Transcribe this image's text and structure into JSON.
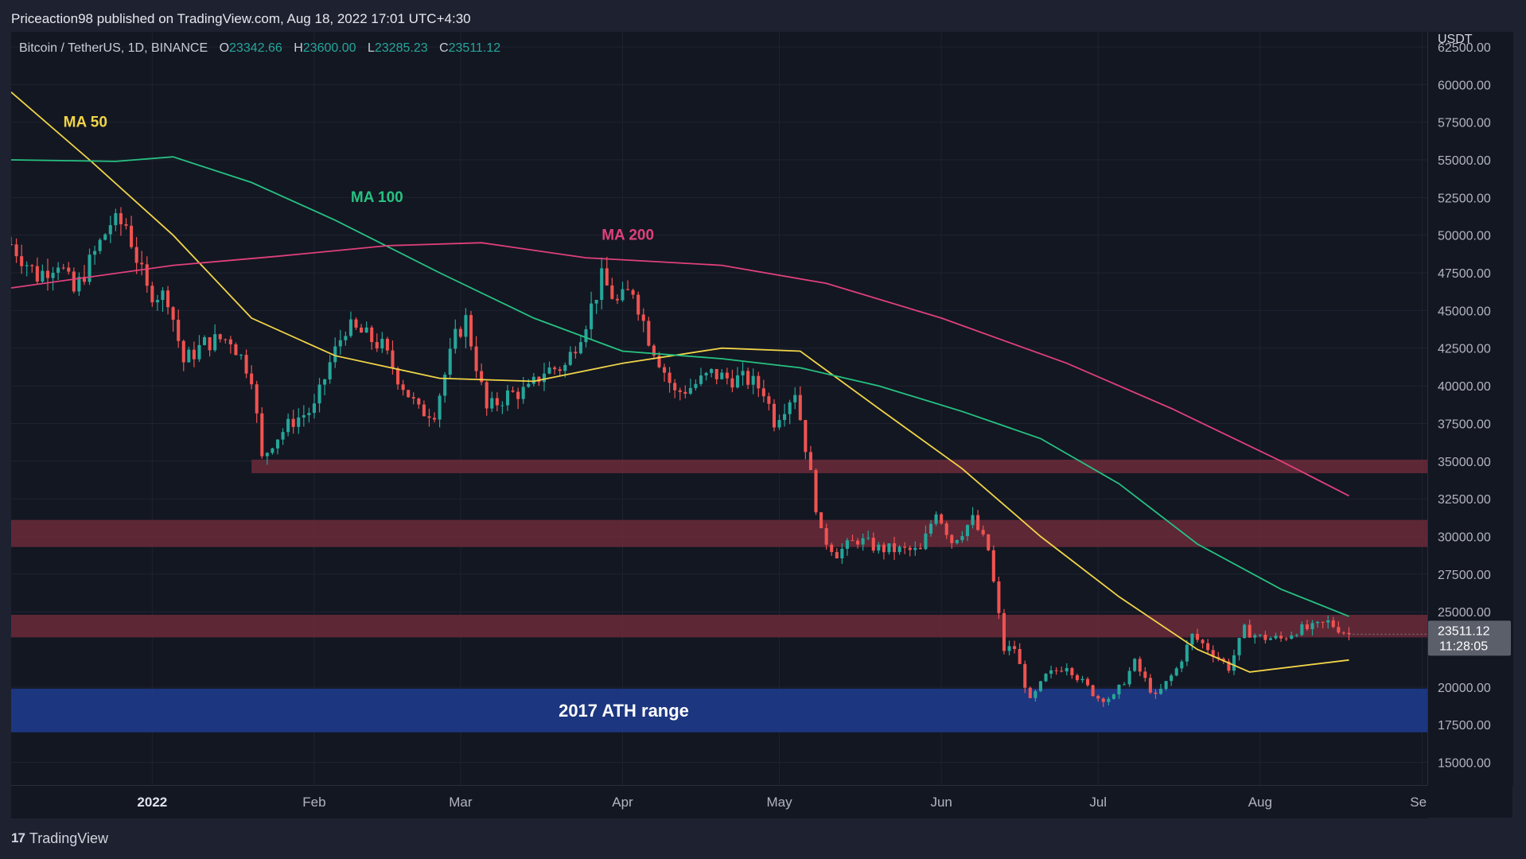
{
  "header": {
    "published_line": "Priceaction98 published on TradingView.com, Aug 18, 2022 17:01 UTC+4:30"
  },
  "symbol": {
    "name": "Bitcoin / TetherUS, 1D, BINANCE",
    "open_label": "O",
    "open": "23342.66",
    "high_label": "H",
    "high": "23600.00",
    "low_label": "L",
    "low": "23285.23",
    "close_label": "C",
    "close": "23511.12"
  },
  "footer": {
    "brand": "TradingView",
    "logo_text": "17"
  },
  "colors": {
    "up": "#26a69a",
    "down": "#ef5350",
    "ma50": "#f0d448",
    "ma100": "#26c281",
    "ma200": "#e0407a",
    "resistance_zone": "#6b2a3a",
    "ath_zone": "#1e3a8a",
    "background": "#131722"
  },
  "chart_data": {
    "type": "candlestick",
    "title": "",
    "currency_label": "USDT",
    "y_ticks": [
      "62500.00",
      "60000.00",
      "57500.00",
      "55000.00",
      "52500.00",
      "50000.00",
      "47500.00",
      "45000.00",
      "42500.00",
      "40000.00",
      "37500.00",
      "35000.00",
      "32500.00",
      "30000.00",
      "27500.00",
      "25000.00",
      "20000.00",
      "17500.00",
      "15000.00"
    ],
    "x_ticks": [
      {
        "label": "2022",
        "date": "2022-01-01"
      },
      {
        "label": "Feb",
        "date": "2022-02-01"
      },
      {
        "label": "Mar",
        "date": "2022-03-01"
      },
      {
        "label": "Apr",
        "date": "2022-04-01"
      },
      {
        "label": "May",
        "date": "2022-05-01"
      },
      {
        "label": "Jun",
        "date": "2022-06-01"
      },
      {
        "label": "Jul",
        "date": "2022-07-01"
      },
      {
        "label": "Aug",
        "date": "2022-08-01"
      },
      {
        "label": "Sep",
        "date": "2022-09-01"
      }
    ],
    "x_range": [
      "2021-12-05",
      "2022-09-02"
    ],
    "y_range": [
      13500,
      63500
    ],
    "last_price": "23511.12",
    "countdown": "11:28:05",
    "price_path": [
      [
        "2021-12-05",
        49400
      ],
      [
        "2021-12-10",
        47300
      ],
      [
        "2021-12-14",
        48300
      ],
      [
        "2021-12-17",
        46200
      ],
      [
        "2021-12-21",
        48800
      ],
      [
        "2021-12-24",
        50800
      ],
      [
        "2021-12-27",
        50700
      ],
      [
        "2021-12-31",
        46300
      ],
      [
        "2022-01-04",
        45900
      ],
      [
        "2022-01-07",
        41600
      ],
      [
        "2022-01-11",
        42800
      ],
      [
        "2022-01-14",
        43100
      ],
      [
        "2022-01-16",
        43100
      ],
      [
        "2022-01-20",
        40700
      ],
      [
        "2022-01-22",
        35100
      ],
      [
        "2022-01-24",
        36300
      ],
      [
        "2022-01-28",
        37700
      ],
      [
        "2022-02-01",
        38500
      ],
      [
        "2022-02-04",
        41500
      ],
      [
        "2022-02-07",
        43900
      ],
      [
        "2022-02-10",
        43500
      ],
      [
        "2022-02-14",
        42600
      ],
      [
        "2022-02-17",
        40600
      ],
      [
        "2022-02-21",
        38300
      ],
      [
        "2022-02-24",
        38300
      ],
      [
        "2022-02-28",
        43200
      ],
      [
        "2022-03-02",
        44400
      ],
      [
        "2022-03-06",
        38400
      ],
      [
        "2022-03-10",
        39400
      ],
      [
        "2022-03-14",
        39700
      ],
      [
        "2022-03-17",
        41000
      ],
      [
        "2022-03-21",
        41300
      ],
      [
        "2022-03-25",
        44300
      ],
      [
        "2022-03-28",
        47100
      ],
      [
        "2022-03-31",
        45500
      ],
      [
        "2022-04-03",
        46400
      ],
      [
        "2022-04-06",
        43200
      ],
      [
        "2022-04-11",
        39500
      ],
      [
        "2022-04-14",
        39900
      ],
      [
        "2022-04-18",
        40800
      ],
      [
        "2022-04-21",
        40500
      ],
      [
        "2022-04-25",
        40400
      ],
      [
        "2022-04-28",
        39700
      ],
      [
        "2022-04-30",
        37700
      ],
      [
        "2022-05-04",
        39700
      ],
      [
        "2022-05-06",
        36000
      ],
      [
        "2022-05-09",
        30100
      ],
      [
        "2022-05-12",
        28900
      ],
      [
        "2022-05-16",
        29800
      ],
      [
        "2022-05-20",
        29200
      ],
      [
        "2022-05-24",
        29100
      ],
      [
        "2022-05-28",
        29000
      ],
      [
        "2022-05-31",
        31800
      ],
      [
        "2022-06-03",
        29700
      ],
      [
        "2022-06-07",
        31100
      ],
      [
        "2022-06-10",
        29100
      ],
      [
        "2022-06-13",
        22500
      ],
      [
        "2022-06-15",
        22600
      ],
      [
        "2022-06-18",
        19000
      ],
      [
        "2022-06-21",
        20700
      ],
      [
        "2022-06-25",
        21500
      ],
      [
        "2022-06-28",
        20300
      ],
      [
        "2022-07-01",
        19300
      ],
      [
        "2022-07-04",
        19300
      ],
      [
        "2022-07-08",
        21600
      ],
      [
        "2022-07-12",
        19300
      ],
      [
        "2022-07-16",
        21200
      ],
      [
        "2022-07-19",
        23400
      ],
      [
        "2022-07-22",
        22600
      ],
      [
        "2022-07-26",
        21300
      ],
      [
        "2022-07-29",
        23800
      ],
      [
        "2022-08-01",
        23300
      ],
      [
        "2022-08-05",
        23200
      ],
      [
        "2022-08-08",
        23800
      ],
      [
        "2022-08-11",
        23900
      ],
      [
        "2022-08-14",
        24300
      ],
      [
        "2022-08-18",
        23511
      ]
    ],
    "series": [
      {
        "name": "MA 50",
        "color": "#f0d448",
        "points": [
          [
            "2021-12-05",
            59500
          ],
          [
            "2021-12-20",
            55000
          ],
          [
            "2022-01-05",
            50000
          ],
          [
            "2022-01-20",
            44500
          ],
          [
            "2022-02-05",
            42000
          ],
          [
            "2022-02-25",
            40500
          ],
          [
            "2022-03-15",
            40300
          ],
          [
            "2022-04-01",
            41500
          ],
          [
            "2022-04-20",
            42500
          ],
          [
            "2022-05-05",
            42300
          ],
          [
            "2022-05-20",
            38500
          ],
          [
            "2022-06-05",
            34500
          ],
          [
            "2022-06-20",
            30000
          ],
          [
            "2022-07-05",
            26000
          ],
          [
            "2022-07-20",
            22500
          ],
          [
            "2022-07-30",
            21000
          ],
          [
            "2022-08-18",
            21800
          ]
        ]
      },
      {
        "name": "MA 100",
        "color": "#26c281",
        "points": [
          [
            "2021-12-05",
            55000
          ],
          [
            "2021-12-25",
            54900
          ],
          [
            "2022-01-05",
            55200
          ],
          [
            "2022-01-20",
            53500
          ],
          [
            "2022-02-05",
            51000
          ],
          [
            "2022-02-25",
            47500
          ],
          [
            "2022-03-15",
            44500
          ],
          [
            "2022-04-01",
            42300
          ],
          [
            "2022-04-20",
            41800
          ],
          [
            "2022-05-05",
            41200
          ],
          [
            "2022-05-20",
            40000
          ],
          [
            "2022-06-05",
            38300
          ],
          [
            "2022-06-20",
            36500
          ],
          [
            "2022-07-05",
            33500
          ],
          [
            "2022-07-20",
            29500
          ],
          [
            "2022-08-05",
            26500
          ],
          [
            "2022-08-18",
            24700
          ]
        ]
      },
      {
        "name": "MA 200",
        "color": "#e0407a",
        "points": [
          [
            "2021-12-05",
            46500
          ],
          [
            "2022-01-05",
            48000
          ],
          [
            "2022-01-25",
            48600
          ],
          [
            "2022-02-15",
            49300
          ],
          [
            "2022-03-05",
            49500
          ],
          [
            "2022-03-25",
            48500
          ],
          [
            "2022-04-20",
            48000
          ],
          [
            "2022-05-10",
            46800
          ],
          [
            "2022-06-01",
            44500
          ],
          [
            "2022-06-25",
            41500
          ],
          [
            "2022-07-15",
            38500
          ],
          [
            "2022-08-05",
            35000
          ],
          [
            "2022-08-18",
            32700
          ]
        ]
      }
    ],
    "zones": [
      {
        "from_date": "2022-01-20",
        "to_date": "2022-09-02",
        "low": 34200,
        "high": 35100,
        "kind": "resistance"
      },
      {
        "from_date": "2021-12-05",
        "to_date": "2022-09-02",
        "low": 29300,
        "high": 31100,
        "kind": "resistance"
      },
      {
        "from_date": "2021-12-05",
        "to_date": "2022-09-02",
        "low": 23300,
        "high": 24800,
        "kind": "resistance"
      },
      {
        "from_date": "2021-12-05",
        "to_date": "2022-09-02",
        "low": 17000,
        "high": 19900,
        "kind": "ath",
        "label": "2017 ATH range"
      }
    ],
    "annotations": [
      {
        "text": "MA 50",
        "date": "2021-12-15",
        "price": 57200,
        "color": "#f0d448"
      },
      {
        "text": "MA 100",
        "date": "2022-02-08",
        "price": 52200,
        "color": "#26c281"
      },
      {
        "text": "MA 200",
        "date": "2022-03-28",
        "price": 49700,
        "color": "#e0407a"
      }
    ],
    "grid": true,
    "legend": "inline annotations"
  }
}
